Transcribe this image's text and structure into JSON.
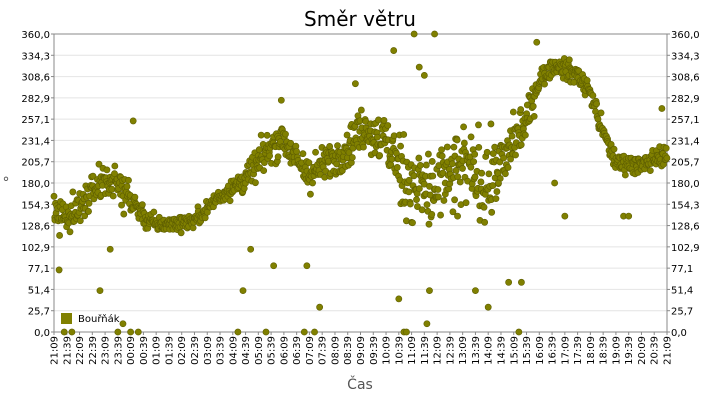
{
  "chart_data": {
    "type": "scatter",
    "title": "Směr větru",
    "xlabel": "Čas",
    "ylabel": "°",
    "ylim": [
      0,
      360
    ],
    "y_ticks": [
      "0,0",
      "25,7",
      "51,4",
      "77,1",
      "102,9",
      "128,6",
      "154,3",
      "180,0",
      "205,7",
      "231,4",
      "257,1",
      "282,9",
      "308,6",
      "334,3",
      "360,0"
    ],
    "x_ticks": [
      "21:09",
      "21:39",
      "22:09",
      "22:39",
      "23:09",
      "23:39",
      "00:09",
      "00:39",
      "01:09",
      "01:39",
      "02:09",
      "02:39",
      "03:09",
      "03:39",
      "04:09",
      "04:39",
      "05:09",
      "05:39",
      "06:09",
      "06:39",
      "07:09",
      "07:39",
      "08:09",
      "08:39",
      "09:09",
      "09:39",
      "10:09",
      "10:39",
      "11:09",
      "11:39",
      "12:09",
      "12:39",
      "13:09",
      "13:39",
      "14:09",
      "14:39",
      "15:09",
      "15:39",
      "16:09",
      "16:39",
      "17:09",
      "17:39",
      "18:09",
      "18:39",
      "19:09",
      "19:39",
      "20:09",
      "20:39",
      "21:09"
    ],
    "grid": true,
    "legend_position": "bottom-left",
    "series": [
      {
        "name": "Bouřňák",
        "color": "#808000",
        "trend": [
          [
            0,
            140
          ],
          [
            0.5,
            140
          ],
          [
            1,
            150
          ],
          [
            1.5,
            170
          ],
          [
            2,
            185
          ],
          [
            2.5,
            180
          ],
          [
            3,
            160
          ],
          [
            3.5,
            140
          ],
          [
            4,
            130
          ],
          [
            4.5,
            130
          ],
          [
            5,
            132
          ],
          [
            5.5,
            135
          ],
          [
            6,
            150
          ],
          [
            6.5,
            165
          ],
          [
            7,
            175
          ],
          [
            7.5,
            185
          ],
          [
            8,
            205
          ],
          [
            8.5,
            225
          ],
          [
            9,
            235
          ],
          [
            9.5,
            205
          ],
          [
            10,
            190
          ],
          [
            10.5,
            200
          ],
          [
            11,
            210
          ],
          [
            11.5,
            225
          ],
          [
            12,
            245
          ],
          [
            12.5,
            240
          ],
          [
            13,
            230
          ],
          [
            13.5,
            200
          ],
          [
            14,
            180
          ],
          [
            14.5,
            170
          ],
          [
            15,
            175
          ],
          [
            15.5,
            185
          ],
          [
            16,
            200
          ],
          [
            16.5,
            190
          ],
          [
            17,
            180
          ],
          [
            17.5,
            200
          ],
          [
            18,
            230
          ],
          [
            18.5,
            255
          ],
          [
            19,
            305
          ],
          [
            19.5,
            320
          ],
          [
            20,
            318
          ],
          [
            20.5,
            310
          ],
          [
            21,
            290
          ],
          [
            21.5,
            240
          ],
          [
            22,
            205
          ],
          [
            22.5,
            205
          ],
          [
            23,
            200
          ],
          [
            23.5,
            210
          ],
          [
            24,
            215
          ]
        ],
        "spread": [
          [
            0,
            25
          ],
          [
            3,
            25
          ],
          [
            4,
            12
          ],
          [
            6,
            12
          ],
          [
            8,
            25
          ],
          [
            12,
            30
          ],
          [
            13,
            40
          ],
          [
            14,
            70
          ],
          [
            17,
            60
          ],
          [
            18,
            40
          ],
          [
            19,
            15
          ],
          [
            21,
            15
          ],
          [
            22,
            15
          ],
          [
            24,
            15
          ]
        ],
        "outliers": [
          [
            0.2,
            75
          ],
          [
            0.4,
            0
          ],
          [
            0.7,
            0
          ],
          [
            1.8,
            50
          ],
          [
            2.2,
            100
          ],
          [
            2.5,
            0
          ],
          [
            2.7,
            10
          ],
          [
            3.0,
            0
          ],
          [
            3.1,
            255
          ],
          [
            3.3,
            0
          ],
          [
            7.2,
            0
          ],
          [
            7.4,
            50
          ],
          [
            7.7,
            100
          ],
          [
            8.3,
            0
          ],
          [
            8.6,
            80
          ],
          [
            8.9,
            280
          ],
          [
            9.8,
            0
          ],
          [
            9.9,
            80
          ],
          [
            10.2,
            0
          ],
          [
            10.4,
            30
          ],
          [
            11.8,
            300
          ],
          [
            13.3,
            340
          ],
          [
            13.5,
            40
          ],
          [
            13.7,
            0
          ],
          [
            13.8,
            0
          ],
          [
            14.1,
            360
          ],
          [
            14.3,
            320
          ],
          [
            14.5,
            310
          ],
          [
            14.6,
            10
          ],
          [
            14.9,
            360
          ],
          [
            14.7,
            50
          ],
          [
            15.8,
            140
          ],
          [
            16.5,
            50
          ],
          [
            17.0,
            30
          ],
          [
            17.4,
            180
          ],
          [
            17.8,
            60
          ],
          [
            18.2,
            0
          ],
          [
            18.3,
            60
          ],
          [
            18.9,
            350
          ],
          [
            19.6,
            180
          ],
          [
            20.0,
            140
          ],
          [
            22.3,
            140
          ],
          [
            22.5,
            140
          ],
          [
            23.8,
            270
          ]
        ]
      }
    ]
  }
}
